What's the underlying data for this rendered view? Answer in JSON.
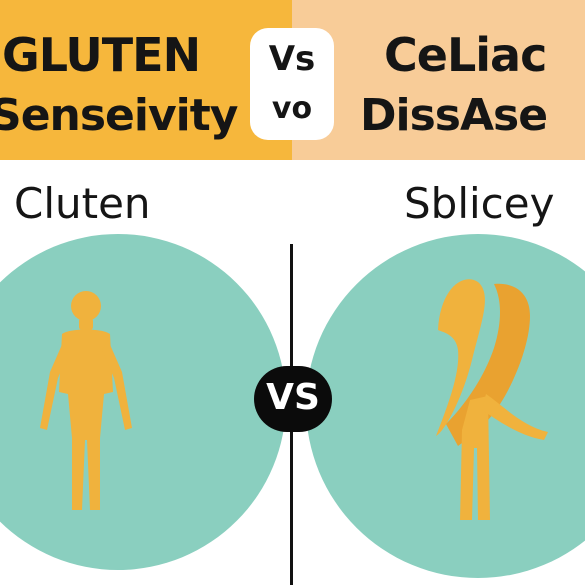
{
  "banner": {
    "left_title_line1": "GLUTEN",
    "left_title_line2": "Senseivity",
    "right_title_line1": "CeLiac",
    "right_title_line2": "DissAse",
    "vs_top": "Vs",
    "vs_bottom": "vo"
  },
  "labels": {
    "left": "Cluten",
    "right": "Sblicey"
  },
  "center_badge": "VS",
  "colors": {
    "left_banner": "#F6B73C",
    "right_banner": "#F8CC98",
    "circle": "#8ACFBF",
    "figure": "#F0B23D",
    "text": "#151515"
  },
  "icons": {
    "left": "human-figure-icon",
    "right": "ribbon-figure-icon"
  }
}
